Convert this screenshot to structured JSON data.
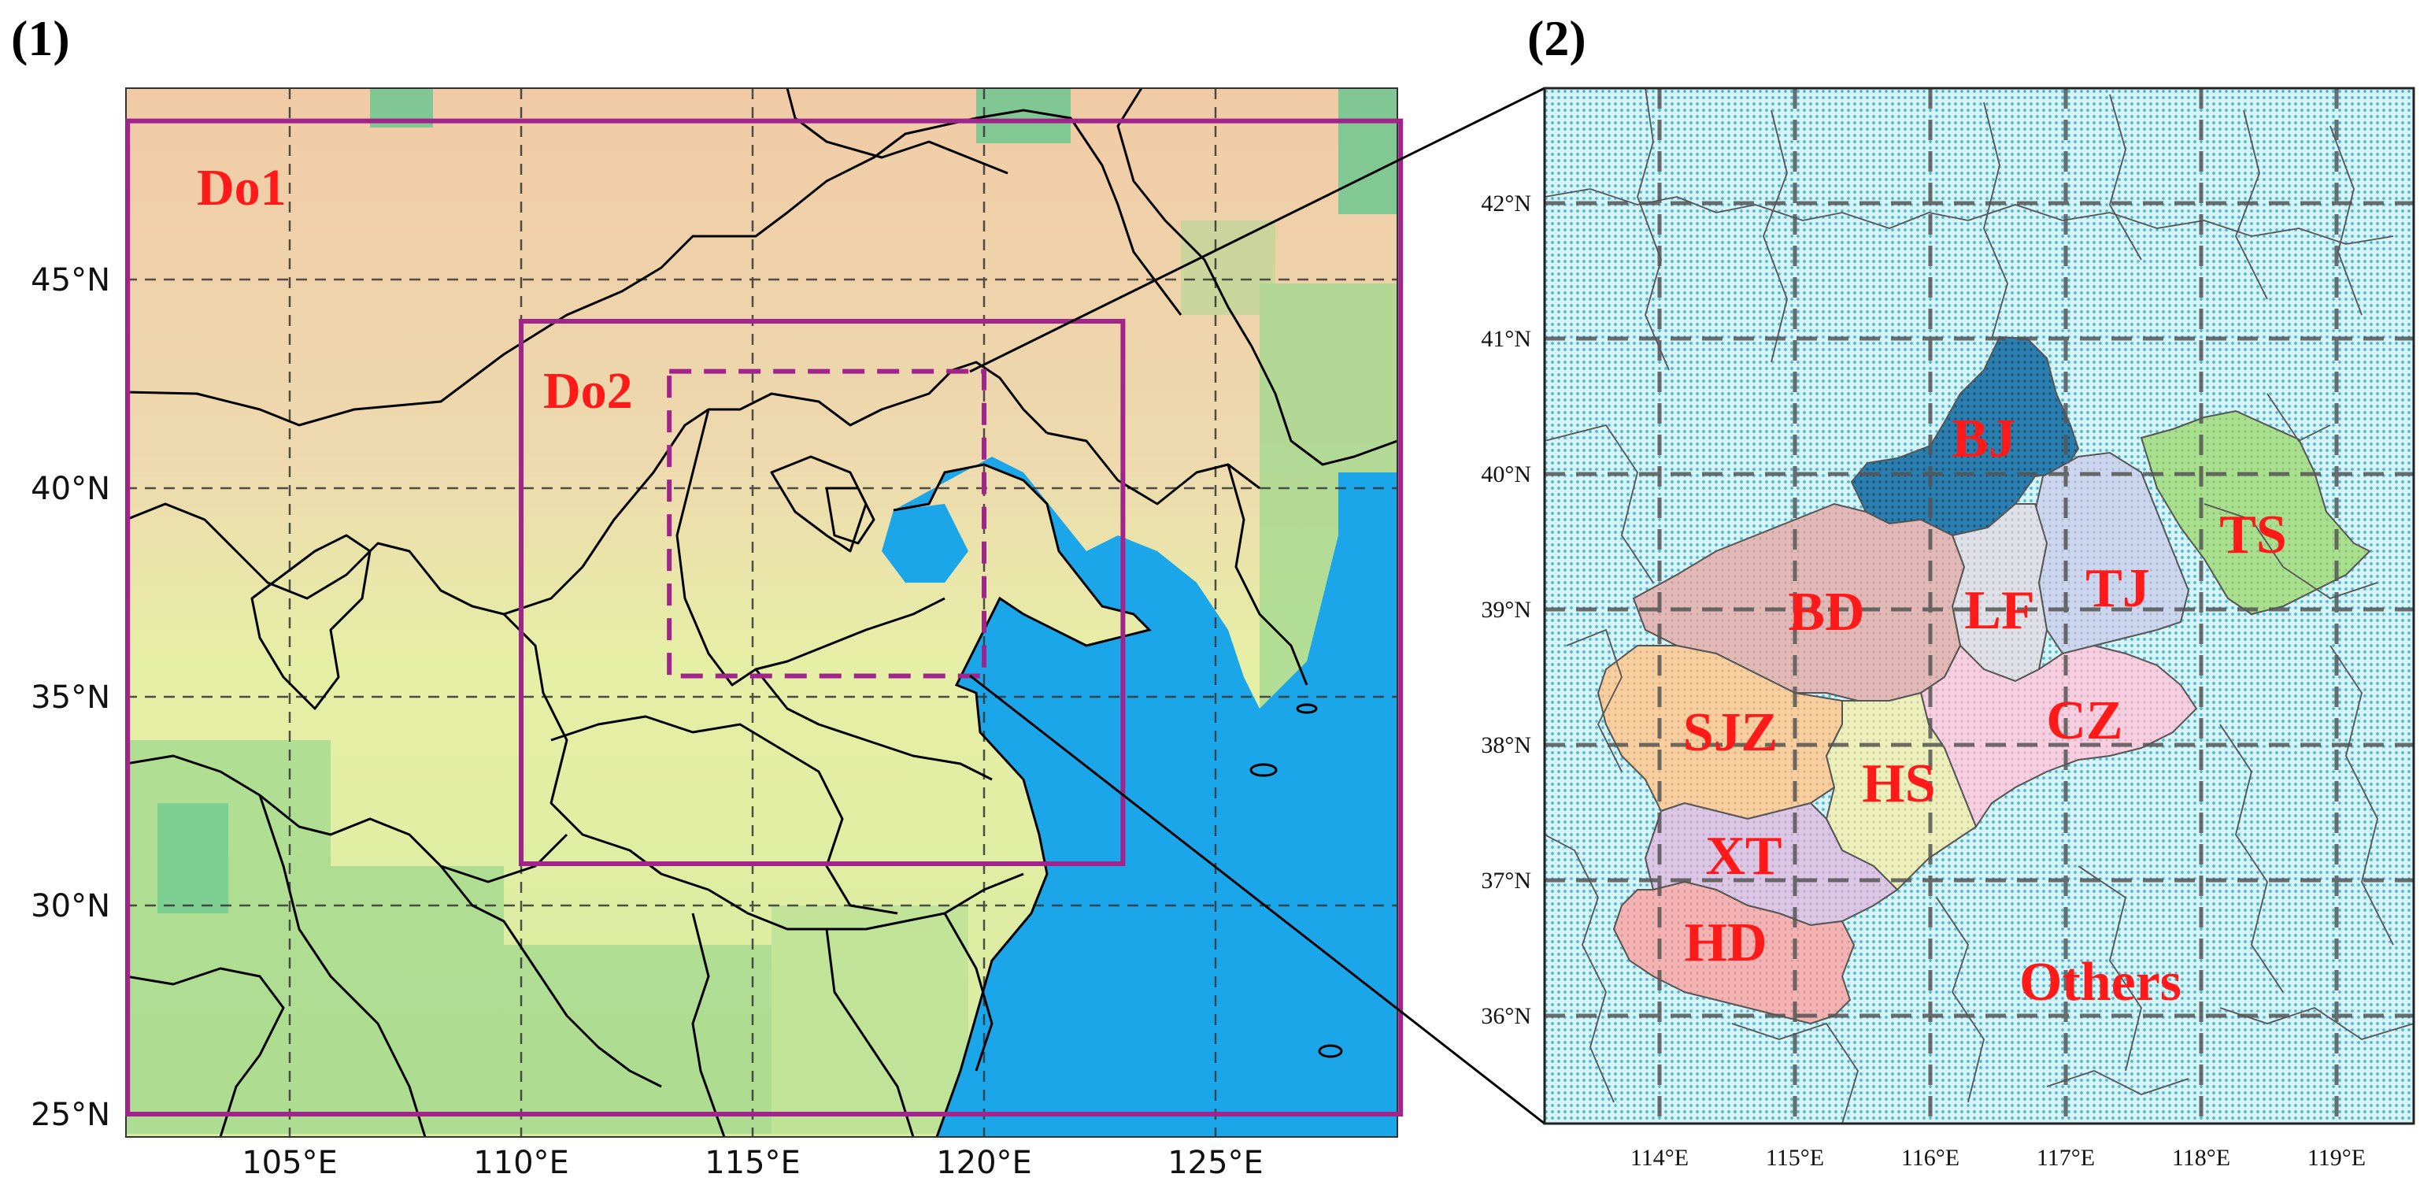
{
  "panels": [
    {
      "label": "(1)",
      "lon_ticks": [
        "105°E",
        "110°E",
        "115°E",
        "120°E",
        "125°E"
      ],
      "lat_ticks": [
        "25°N",
        "30°N",
        "35°N",
        "40°N",
        "45°N"
      ],
      "domains": [
        {
          "label": "Do1",
          "style": "solid",
          "lon": [
            101.5,
            129
          ],
          "lat": [
            25,
            48.8
          ]
        },
        {
          "label": "Do2",
          "style": "solid",
          "lon": [
            110,
            123
          ],
          "lat": [
            31,
            44
          ]
        },
        {
          "label": "",
          "style": "dashed",
          "lon": [
            113.2,
            120
          ],
          "lat": [
            35.5,
            42.8
          ]
        }
      ],
      "colors": {
        "box": "#a0248c",
        "sea": "#1aa6e8",
        "land": "#e9efa4",
        "north": "#f2c4a2",
        "grid": "#333333"
      }
    },
    {
      "label": "(2)",
      "lon_ticks": [
        "114°E",
        "115°E",
        "116°E",
        "117°E",
        "118°E",
        "119°E"
      ],
      "lat_ticks": [
        "36°N",
        "37°N",
        "38°N",
        "39°N",
        "40°N",
        "41°N",
        "42°N"
      ],
      "regions": [
        {
          "name": "BJ",
          "color": "#2b7fb0"
        },
        {
          "name": "TS",
          "color": "#a9e08e"
        },
        {
          "name": "TJ",
          "color": "#ccd6ee"
        },
        {
          "name": "LF",
          "color": "#e0e0e8"
        },
        {
          "name": "BD",
          "color": "#e3b9b7"
        },
        {
          "name": "CZ",
          "color": "#f8cfe0"
        },
        {
          "name": "SJZ",
          "color": "#f9cf9f"
        },
        {
          "name": "HS",
          "color": "#eef0bb"
        },
        {
          "name": "XT",
          "color": "#dcc6e6"
        },
        {
          "name": "HD",
          "color": "#f5b3b3"
        },
        {
          "name": "Others",
          "color": "#bfeaf0"
        }
      ]
    }
  ]
}
